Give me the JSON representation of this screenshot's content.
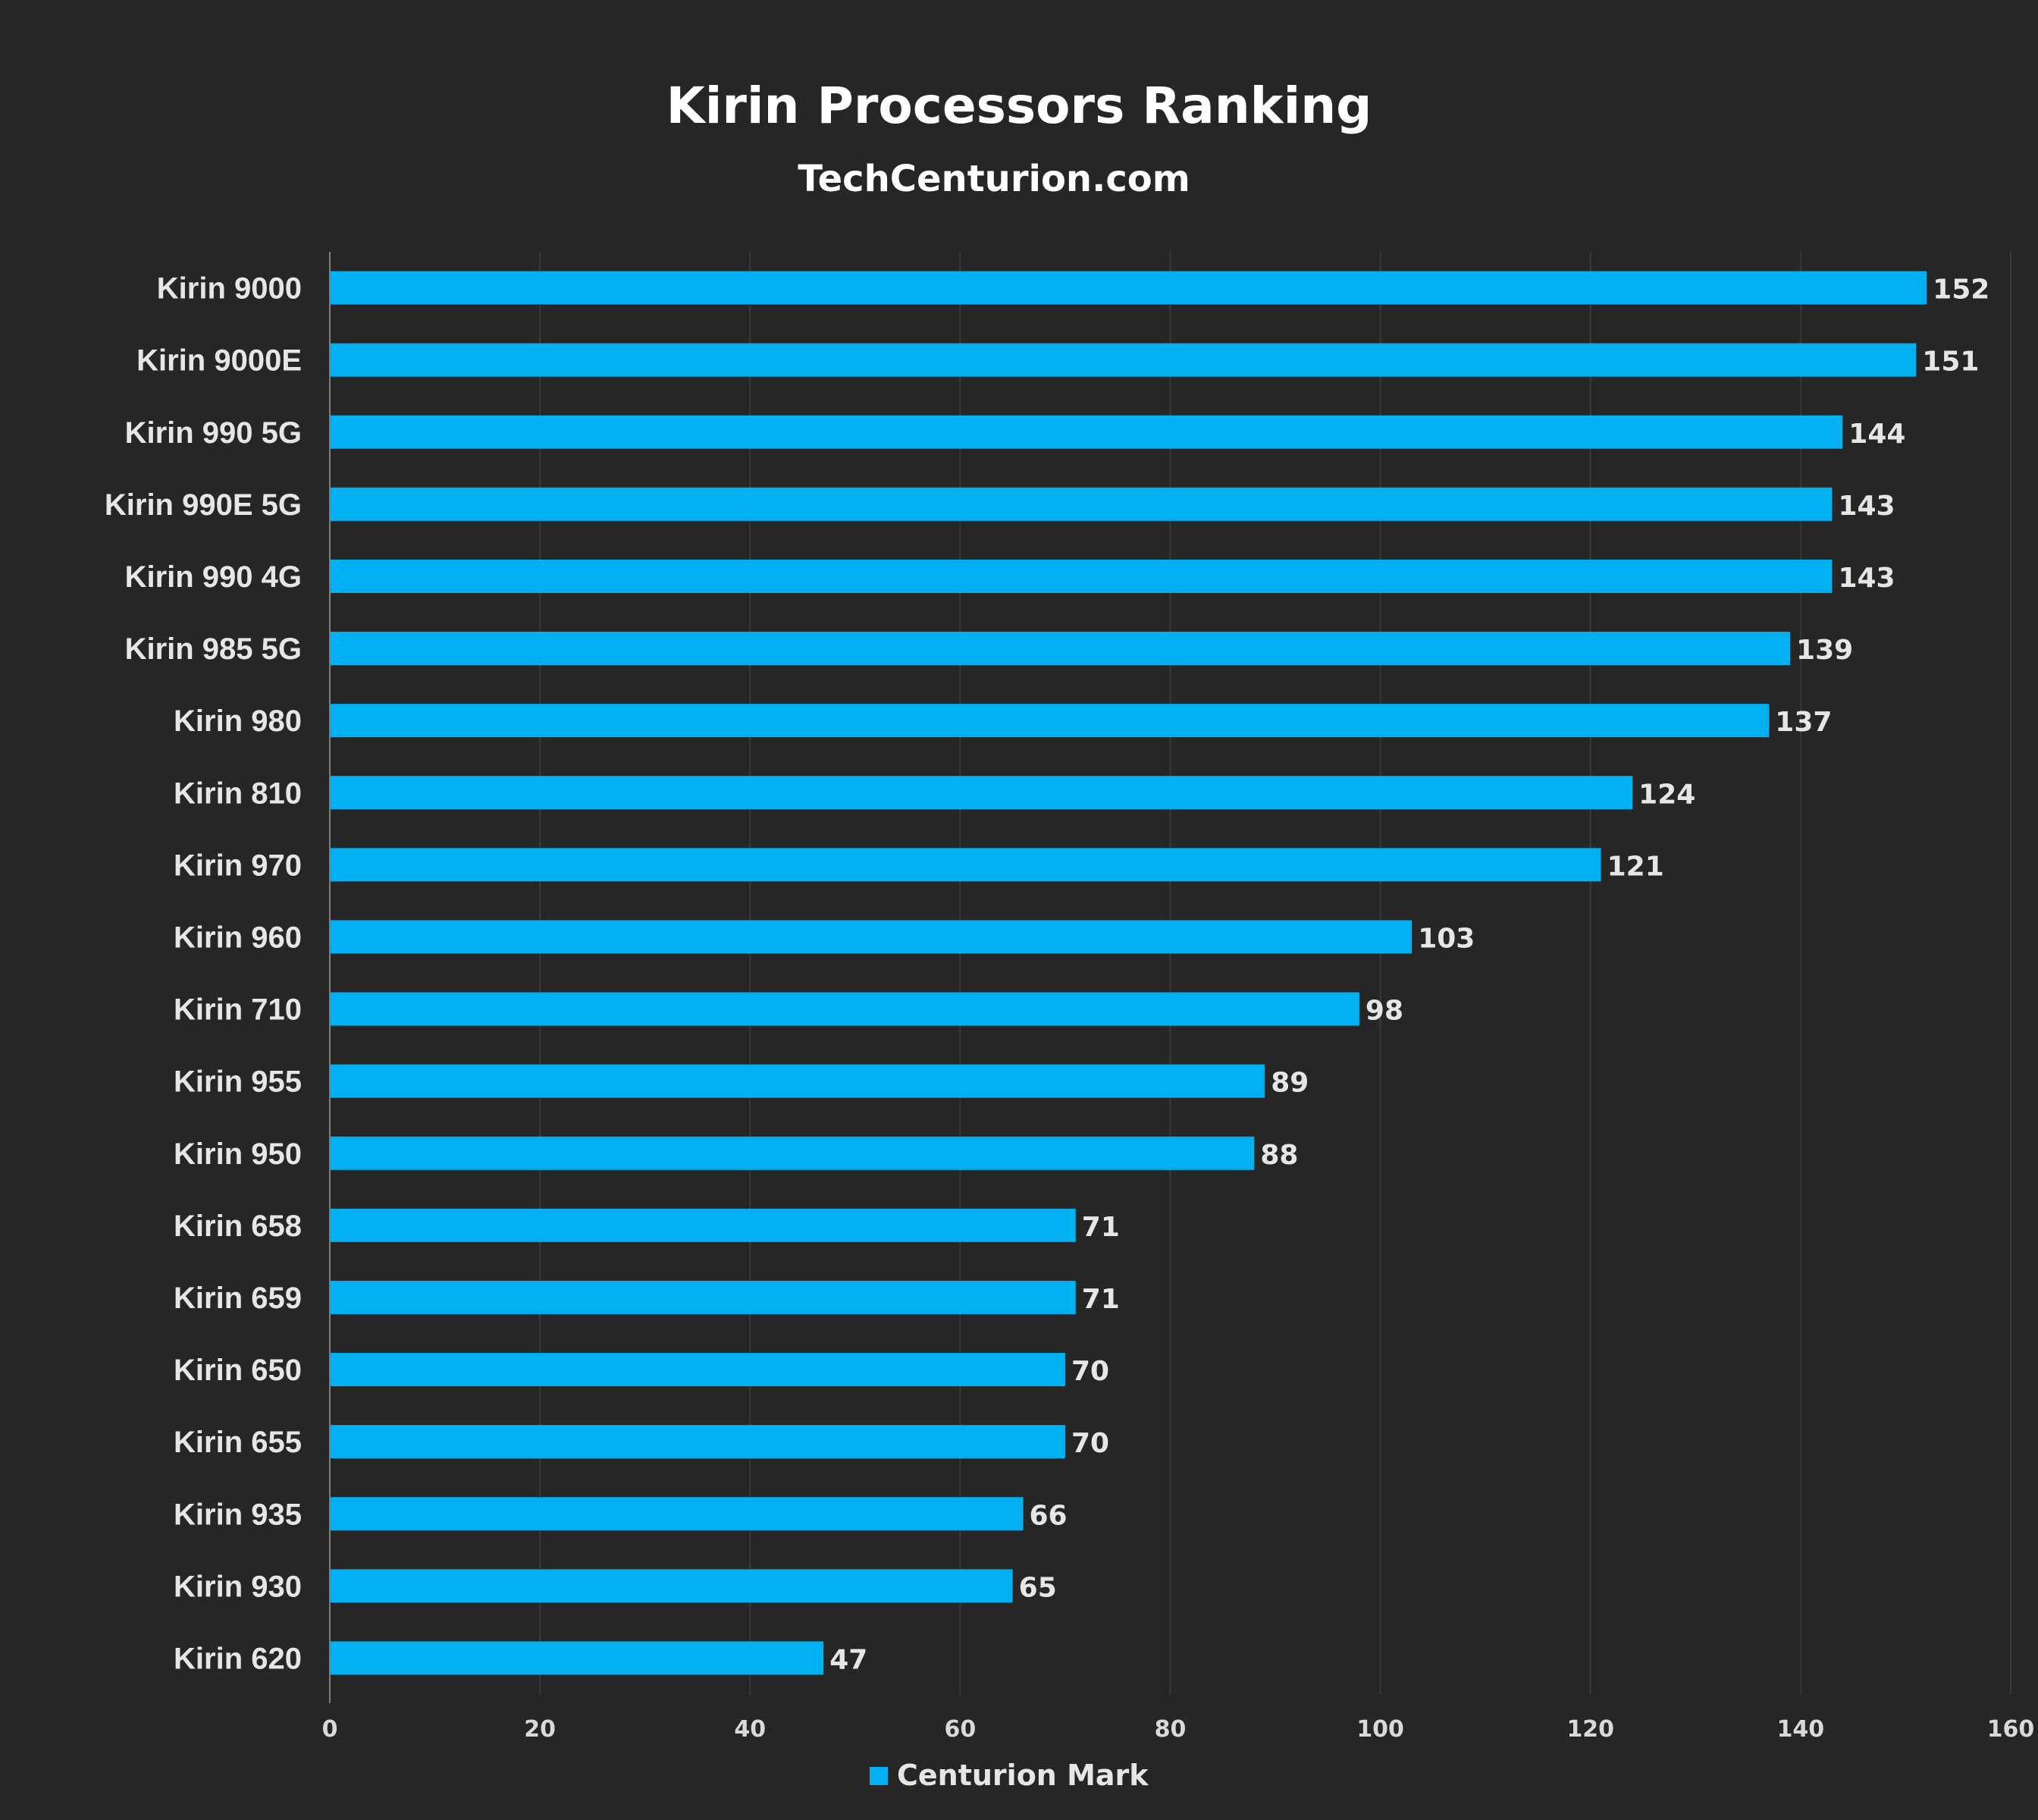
{
  "chart_data": {
    "type": "bar",
    "orientation": "horizontal",
    "title": "Kirin Processors Ranking",
    "subtitle": "TechCenturion.com",
    "categories": [
      "Kirin 9000",
      "Kirin 9000E",
      "Kirin 990 5G",
      "Kirin 990E 5G",
      "Kirin 990 4G",
      "Kirin 985 5G",
      "Kirin 980",
      "Kirin 810",
      "Kirin 970",
      "Kirin 960",
      "Kirin 710",
      "Kirin 955",
      "Kirin 950",
      "Kirin 658",
      "Kirin 659",
      "Kirin 650",
      "Kirin 655",
      "Kirin 935",
      "Kirin 930",
      "Kirin 620"
    ],
    "series": [
      {
        "name": "Centurion Mark",
        "color": "#00b0f0",
        "values": [
          152,
          151,
          144,
          143,
          143,
          139,
          137,
          124,
          121,
          103,
          98,
          89,
          88,
          71,
          71,
          70,
          70,
          66,
          65,
          47
        ]
      }
    ],
    "xlim": [
      0,
      160
    ],
    "xticks": [
      0,
      20,
      40,
      60,
      80,
      100,
      120,
      140,
      160
    ],
    "xlabel": "",
    "ylabel": "",
    "grid": true,
    "legend": "bottom",
    "colors": {
      "background": "#262626",
      "bar": "#00b0f0",
      "gridline": "#3a3a3a",
      "axis": "#7f7f7f",
      "text": "#e6e6e6"
    }
  }
}
